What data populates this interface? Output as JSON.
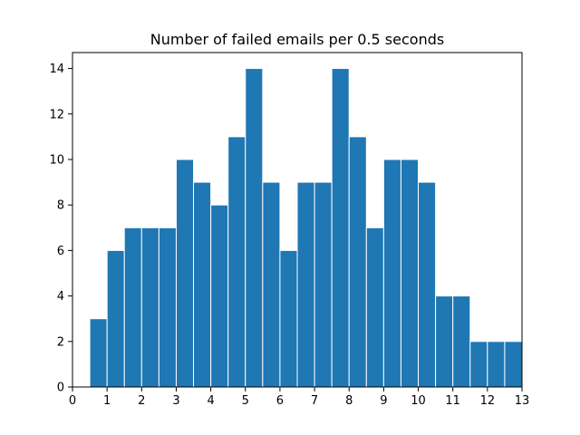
{
  "chart_data": {
    "type": "bar",
    "title": "Number of failed emails per 0.5 seconds",
    "xlabel": "",
    "ylabel": "",
    "bin_width": 0.5,
    "bin_start": 0.5,
    "values": [
      3,
      6,
      7,
      7,
      7,
      10,
      9,
      8,
      11,
      14,
      9,
      6,
      9,
      9,
      14,
      11,
      7,
      10,
      10,
      9,
      4,
      4,
      2,
      2,
      2
    ],
    "xlim": [
      0,
      13
    ],
    "ylim": [
      0,
      14.7
    ],
    "xticks": [
      0,
      1,
      2,
      3,
      4,
      5,
      6,
      7,
      8,
      9,
      10,
      11,
      12,
      13
    ],
    "yticks": [
      0,
      2,
      4,
      6,
      8,
      10,
      12,
      14
    ],
    "grid": false,
    "bar_color": "#1f77b4",
    "edge_color": "#ffffff"
  }
}
